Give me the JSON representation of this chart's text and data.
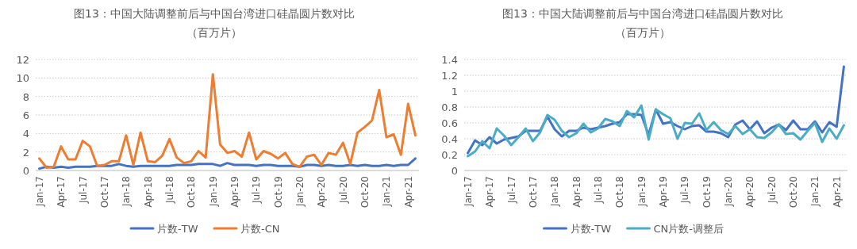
{
  "chart_data": [
    {
      "type": "line",
      "title": "图13：中国大陆调整前后与中国台湾进口硅晶圆片数对比",
      "subtitle": "（百万片）",
      "categories": [
        "Jan-17",
        null,
        null,
        "Apr-17",
        null,
        null,
        "Jul-17",
        null,
        null,
        "Oct-17",
        null,
        null,
        "Jan-18",
        null,
        null,
        "Apr-18",
        null,
        null,
        "Jul-18",
        null,
        null,
        "Oct-18",
        null,
        null,
        "Jan-19",
        null,
        null,
        "Apr-19",
        null,
        null,
        "Jul-19",
        null,
        null,
        "Oct-19",
        null,
        null,
        "Jan-20",
        null,
        null,
        "Apr-20",
        null,
        null,
        "Jul-20",
        null,
        null,
        "Oct-20",
        null,
        null,
        "Jan-21",
        null,
        null,
        "Apr-21",
        null
      ],
      "series": [
        {
          "name": "片数-TW",
          "color": "#4472c4",
          "values": [
            0.2,
            0.4,
            0.3,
            0.4,
            0.3,
            0.4,
            0.4,
            0.4,
            0.5,
            0.5,
            0.5,
            0.7,
            0.5,
            0.4,
            0.5,
            0.5,
            0.5,
            0.5,
            0.5,
            0.6,
            0.6,
            0.6,
            0.7,
            0.7,
            0.7,
            0.5,
            0.8,
            0.6,
            0.6,
            0.6,
            0.5,
            0.6,
            0.6,
            0.5,
            0.5,
            0.5,
            0.4,
            0.6,
            0.6,
            0.5,
            0.6,
            0.5,
            0.5,
            0.6,
            0.5,
            0.6,
            0.5,
            0.5,
            0.6,
            0.5,
            0.6,
            0.6,
            1.3
          ]
        },
        {
          "name": "片数-CN",
          "color": "#ed7d31",
          "values": [
            1.3,
            0.3,
            0.4,
            2.6,
            1.2,
            1.2,
            3.2,
            2.6,
            0.5,
            0.6,
            1.0,
            1.0,
            3.8,
            0.6,
            4.1,
            1.0,
            0.9,
            1.6,
            3.4,
            1.4,
            0.8,
            1.0,
            2.1,
            1.4,
            10.4,
            2.8,
            1.9,
            2.1,
            1.5,
            4.1,
            1.2,
            2.1,
            1.8,
            1.3,
            1.9,
            0.7,
            0.4,
            1.5,
            1.7,
            0.6,
            1.9,
            1.7,
            3.0,
            0.7,
            4.1,
            4.7,
            5.4,
            8.7,
            3.6,
            3.9,
            1.7,
            7.2,
            3.8
          ]
        }
      ],
      "ylim": [
        0,
        12
      ],
      "yticks": [
        0,
        2,
        4,
        6,
        8,
        10,
        12
      ],
      "grid": "y",
      "legend": "bottom"
    },
    {
      "type": "line",
      "title": "图13：中国大陆调整前后与中国台湾进口硅晶圆片数对比",
      "subtitle": "（百万片）",
      "categories": [
        "Jan-17",
        null,
        null,
        "Apr-17",
        null,
        null,
        "Jul-17",
        null,
        null,
        "Oct-17",
        null,
        null,
        "Jan-18",
        null,
        null,
        "Apr-18",
        null,
        null,
        "Jul-18",
        null,
        null,
        "Oct-18",
        null,
        null,
        "Jan-19",
        null,
        null,
        "Apr-19",
        null,
        null,
        "Jul-19",
        null,
        null,
        "Oct-19",
        null,
        null,
        "Jan-20",
        null,
        null,
        "Apr-20",
        null,
        null,
        "Jul-20",
        null,
        null,
        "Oct-20",
        null,
        null,
        "Jan-21",
        null,
        null,
        "Apr-21",
        null
      ],
      "series": [
        {
          "name": "片数-TW",
          "color": "#4472c4",
          "values": [
            0.22,
            0.38,
            0.32,
            0.42,
            0.34,
            0.39,
            0.41,
            0.43,
            0.5,
            0.5,
            0.5,
            0.68,
            0.52,
            0.43,
            0.5,
            0.5,
            0.54,
            0.52,
            0.54,
            0.56,
            0.59,
            0.61,
            0.71,
            0.71,
            0.7,
            0.45,
            0.77,
            0.59,
            0.61,
            0.56,
            0.52,
            0.56,
            0.57,
            0.49,
            0.49,
            0.47,
            0.42,
            0.58,
            0.63,
            0.52,
            0.62,
            0.47,
            0.54,
            0.58,
            0.51,
            0.63,
            0.52,
            0.52,
            0.62,
            0.48,
            0.61,
            0.55,
            1.31
          ]
        },
        {
          "name": "CN片数-调整后",
          "color": "#4bacc6",
          "values": [
            0.18,
            0.24,
            0.37,
            0.28,
            0.53,
            0.44,
            0.32,
            0.42,
            0.53,
            0.37,
            0.48,
            0.7,
            0.64,
            0.5,
            0.42,
            0.47,
            0.59,
            0.48,
            0.53,
            0.65,
            0.62,
            0.56,
            0.75,
            0.67,
            0.82,
            0.39,
            0.77,
            0.71,
            0.66,
            0.4,
            0.6,
            0.59,
            0.72,
            0.51,
            0.61,
            0.51,
            0.46,
            0.56,
            0.46,
            0.52,
            0.42,
            0.41,
            0.48,
            0.58,
            0.46,
            0.47,
            0.39,
            0.5,
            0.6,
            0.36,
            0.53,
            0.4,
            0.57
          ]
        }
      ],
      "ylim": [
        0,
        1.4
      ],
      "yticks": [
        0,
        0.2,
        0.4,
        0.6,
        0.8,
        1,
        1.2,
        1.4
      ],
      "grid": "y",
      "legend": "bottom"
    }
  ]
}
